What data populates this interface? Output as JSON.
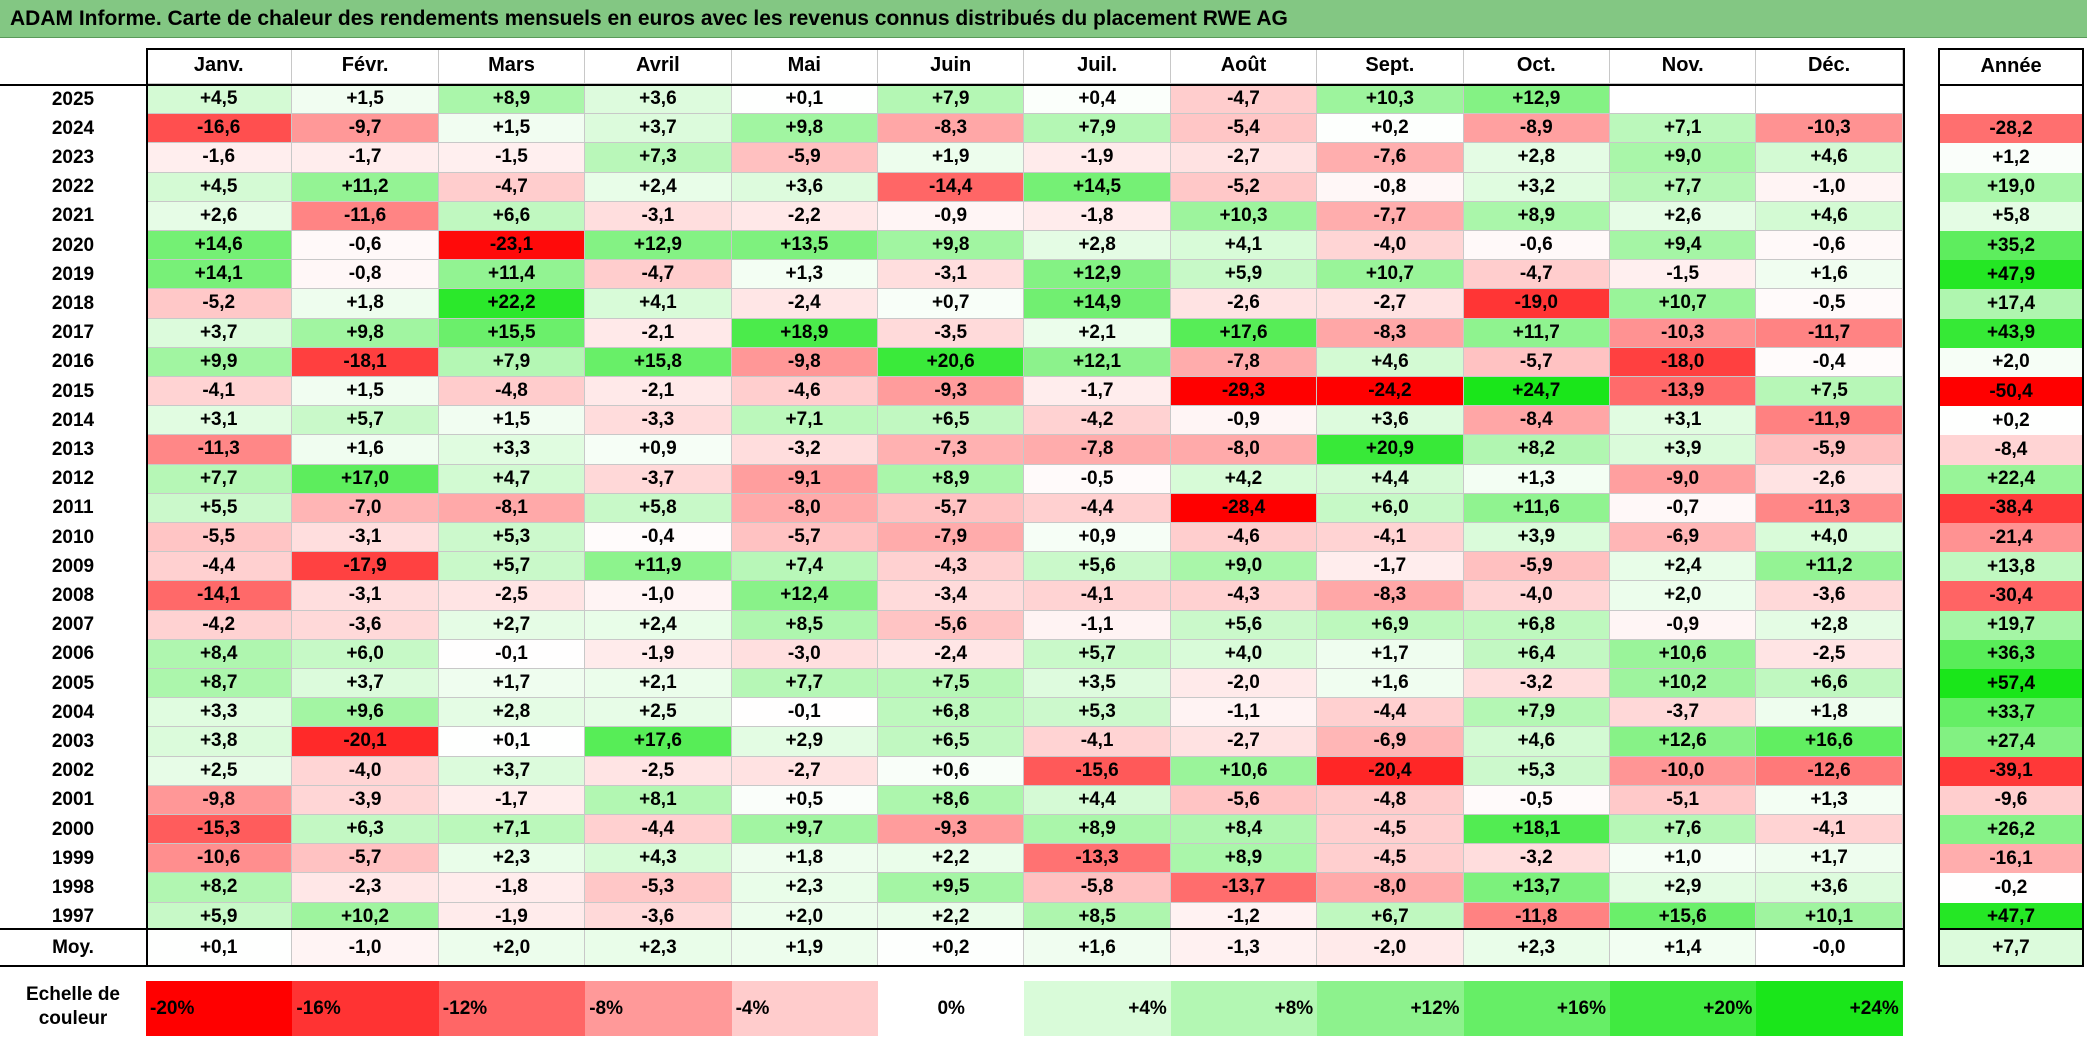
{
  "title": "ADAM Informe. Carte de chaleur des rendements mensuels en euros avec les revenus connus distribués du placement RWE AG",
  "chart_data": {
    "type": "heatmap",
    "title": "ADAM Informe. Carte de chaleur des rendements mensuels en euros avec les revenus connus distribués du placement RWE AG",
    "columns": [
      "Janv.",
      "Févr.",
      "Mars",
      "Avril",
      "Mai",
      "Juin",
      "Juil.",
      "Août",
      "Sept.",
      "Oct.",
      "Nov.",
      "Déc."
    ],
    "annual_header": "Année",
    "rows": [
      {
        "year": "2025",
        "values": [
          "+4,5",
          "+1,5",
          "+8,9",
          "+3,6",
          "+0,1",
          "+7,9",
          "+0,4",
          "-4,7",
          "+10,3",
          "+12,9",
          "",
          ""
        ],
        "annual": ""
      },
      {
        "year": "2024",
        "values": [
          "-16,6",
          "-9,7",
          "+1,5",
          "+3,7",
          "+9,8",
          "-8,3",
          "+7,9",
          "-5,4",
          "+0,2",
          "-8,9",
          "+7,1",
          "-10,3"
        ],
        "annual": "-28,2"
      },
      {
        "year": "2023",
        "values": [
          "-1,6",
          "-1,7",
          "-1,5",
          "+7,3",
          "-5,9",
          "+1,9",
          "-1,9",
          "-2,7",
          "-7,6",
          "+2,8",
          "+9,0",
          "+4,6"
        ],
        "annual": "+1,2"
      },
      {
        "year": "2022",
        "values": [
          "+4,5",
          "+11,2",
          "-4,7",
          "+2,4",
          "+3,6",
          "-14,4",
          "+14,5",
          "-5,2",
          "-0,8",
          "+3,2",
          "+7,7",
          "-1,0"
        ],
        "annual": "+19,0"
      },
      {
        "year": "2021",
        "values": [
          "+2,6",
          "-11,6",
          "+6,6",
          "-3,1",
          "-2,2",
          "-0,9",
          "-1,8",
          "+10,3",
          "-7,7",
          "+8,9",
          "+2,6",
          "+4,6"
        ],
        "annual": "+5,8"
      },
      {
        "year": "2020",
        "values": [
          "+14,6",
          "-0,6",
          "-23,1",
          "+12,9",
          "+13,5",
          "+9,8",
          "+2,8",
          "+4,1",
          "-4,0",
          "-0,6",
          "+9,4",
          "-0,6"
        ],
        "annual": "+35,2"
      },
      {
        "year": "2019",
        "values": [
          "+14,1",
          "-0,8",
          "+11,4",
          "-4,7",
          "+1,3",
          "-3,1",
          "+12,9",
          "+5,9",
          "+10,7",
          "-4,7",
          "-1,5",
          "+1,6"
        ],
        "annual": "+47,9"
      },
      {
        "year": "2018",
        "values": [
          "-5,2",
          "+1,8",
          "+22,2",
          "+4,1",
          "-2,4",
          "+0,7",
          "+14,9",
          "-2,6",
          "-2,7",
          "-19,0",
          "+10,7",
          "-0,5"
        ],
        "annual": "+17,4"
      },
      {
        "year": "2017",
        "values": [
          "+3,7",
          "+9,8",
          "+15,5",
          "-2,1",
          "+18,9",
          "-3,5",
          "+2,1",
          "+17,6",
          "-8,3",
          "+11,7",
          "-10,3",
          "-11,7"
        ],
        "annual": "+43,9"
      },
      {
        "year": "2016",
        "values": [
          "+9,9",
          "-18,1",
          "+7,9",
          "+15,8",
          "-9,8",
          "+20,6",
          "+12,1",
          "-7,8",
          "+4,6",
          "-5,7",
          "-18,0",
          "-0,4"
        ],
        "annual": "+2,0"
      },
      {
        "year": "2015",
        "values": [
          "-4,1",
          "+1,5",
          "-4,8",
          "-2,1",
          "-4,6",
          "-9,3",
          "-1,7",
          "-29,3",
          "-24,2",
          "+24,7",
          "-13,9",
          "+7,5"
        ],
        "annual": "-50,4"
      },
      {
        "year": "2014",
        "values": [
          "+3,1",
          "+5,7",
          "+1,5",
          "-3,3",
          "+7,1",
          "+6,5",
          "-4,2",
          "-0,9",
          "+3,6",
          "-8,4",
          "+3,1",
          "-11,9"
        ],
        "annual": "+0,2"
      },
      {
        "year": "2013",
        "values": [
          "-11,3",
          "+1,6",
          "+3,3",
          "+0,9",
          "-3,2",
          "-7,3",
          "-7,8",
          "-8,0",
          "+20,9",
          "+8,2",
          "+3,9",
          "-5,9"
        ],
        "annual": "-8,4"
      },
      {
        "year": "2012",
        "values": [
          "+7,7",
          "+17,0",
          "+4,7",
          "-3,7",
          "-9,1",
          "+8,9",
          "-0,5",
          "+4,2",
          "+4,4",
          "+1,3",
          "-9,0",
          "-2,6"
        ],
        "annual": "+22,4"
      },
      {
        "year": "2011",
        "values": [
          "+5,5",
          "-7,0",
          "-8,1",
          "+5,8",
          "-8,0",
          "-5,7",
          "-4,4",
          "-28,4",
          "+6,0",
          "+11,6",
          "-0,7",
          "-11,3"
        ],
        "annual": "-38,4"
      },
      {
        "year": "2010",
        "values": [
          "-5,5",
          "-3,1",
          "+5,3",
          "-0,4",
          "-5,7",
          "-7,9",
          "+0,9",
          "-4,6",
          "-4,1",
          "+3,9",
          "-6,9",
          "+4,0"
        ],
        "annual": "-21,4"
      },
      {
        "year": "2009",
        "values": [
          "-4,4",
          "-17,9",
          "+5,7",
          "+11,9",
          "+7,4",
          "-4,3",
          "+5,6",
          "+9,0",
          "-1,7",
          "-5,9",
          "+2,4",
          "+11,2"
        ],
        "annual": "+13,8"
      },
      {
        "year": "2008",
        "values": [
          "-14,1",
          "-3,1",
          "-2,5",
          "-1,0",
          "+12,4",
          "-3,4",
          "-4,1",
          "-4,3",
          "-8,3",
          "-4,0",
          "+2,0",
          "-3,6"
        ],
        "annual": "-30,4"
      },
      {
        "year": "2007",
        "values": [
          "-4,2",
          "-3,6",
          "+2,7",
          "+2,4",
          "+8,5",
          "-5,6",
          "-1,1",
          "+5,6",
          "+6,9",
          "+6,8",
          "-0,9",
          "+2,8"
        ],
        "annual": "+19,7"
      },
      {
        "year": "2006",
        "values": [
          "+8,4",
          "+6,0",
          "-0,1",
          "-1,9",
          "-3,0",
          "-2,4",
          "+5,7",
          "+4,0",
          "+1,7",
          "+6,4",
          "+10,6",
          "-2,5"
        ],
        "annual": "+36,3"
      },
      {
        "year": "2005",
        "values": [
          "+8,7",
          "+3,7",
          "+1,7",
          "+2,1",
          "+7,7",
          "+7,5",
          "+3,5",
          "-2,0",
          "+1,6",
          "-3,2",
          "+10,2",
          "+6,6"
        ],
        "annual": "+57,4"
      },
      {
        "year": "2004",
        "values": [
          "+3,3",
          "+9,6",
          "+2,8",
          "+2,5",
          "-0,1",
          "+6,8",
          "+5,3",
          "-1,1",
          "-4,4",
          "+7,9",
          "-3,7",
          "+1,8"
        ],
        "annual": "+33,7"
      },
      {
        "year": "2003",
        "values": [
          "+3,8",
          "-20,1",
          "+0,1",
          "+17,6",
          "+2,9",
          "+6,5",
          "-4,1",
          "-2,7",
          "-6,9",
          "+4,6",
          "+12,6",
          "+16,6"
        ],
        "annual": "+27,4"
      },
      {
        "year": "2002",
        "values": [
          "+2,5",
          "-4,0",
          "+3,7",
          "-2,5",
          "-2,7",
          "+0,6",
          "-15,6",
          "+10,6",
          "-20,4",
          "+5,3",
          "-10,0",
          "-12,6"
        ],
        "annual": "-39,1"
      },
      {
        "year": "2001",
        "values": [
          "-9,8",
          "-3,9",
          "-1,7",
          "+8,1",
          "+0,5",
          "+8,6",
          "+4,4",
          "-5,6",
          "-4,8",
          "-0,5",
          "-5,1",
          "+1,3"
        ],
        "annual": "-9,6"
      },
      {
        "year": "2000",
        "values": [
          "-15,3",
          "+6,3",
          "+7,1",
          "-4,4",
          "+9,7",
          "-9,3",
          "+8,9",
          "+8,4",
          "-4,5",
          "+18,1",
          "+7,6",
          "-4,1"
        ],
        "annual": "+26,2"
      },
      {
        "year": "1999",
        "values": [
          "-10,6",
          "-5,7",
          "+2,3",
          "+4,3",
          "+1,8",
          "+2,2",
          "-13,3",
          "+8,9",
          "-4,5",
          "-3,2",
          "+1,0",
          "+1,7"
        ],
        "annual": "-16,1"
      },
      {
        "year": "1998",
        "values": [
          "+8,2",
          "-2,3",
          "-1,8",
          "-5,3",
          "+2,3",
          "+9,5",
          "-5,8",
          "-13,7",
          "-8,0",
          "+13,7",
          "+2,9",
          "+3,6"
        ],
        "annual": "-0,2"
      },
      {
        "year": "1997",
        "values": [
          "+5,9",
          "+10,2",
          "-1,9",
          "-3,6",
          "+2,0",
          "+2,2",
          "+8,5",
          "-1,2",
          "+6,7",
          "-11,8",
          "+15,6",
          "+10,1"
        ],
        "annual": "+47,7"
      }
    ],
    "average": {
      "label": "Moy.",
      "values": [
        "+0,1",
        "-1,0",
        "+2,0",
        "+2,3",
        "+1,9",
        "+0,2",
        "+1,6",
        "-1,3",
        "-2,0",
        "+2,3",
        "+1,4",
        "-0,0"
      ],
      "annual": "+7,7"
    },
    "scale": {
      "label_line1": "Echelle de",
      "label_line2": "couleur",
      "items": [
        {
          "label": "-20%",
          "value": -20,
          "color": "#ff0000"
        },
        {
          "label": "-16%",
          "value": -16,
          "color": "#ff3333"
        },
        {
          "label": "-12%",
          "value": -12,
          "color": "#ff6666"
        },
        {
          "label": "-8%",
          "value": -8,
          "color": "#ff9999"
        },
        {
          "label": "-4%",
          "value": -4,
          "color": "#ffcccc"
        },
        {
          "label": "0%",
          "value": 0,
          "color": "#ffffff"
        },
        {
          "label": "+4%",
          "value": 4,
          "color": "#d9fbd9"
        },
        {
          "label": "+8%",
          "value": 8,
          "color": "#b3f7b3"
        },
        {
          "label": "+12%",
          "value": 12,
          "color": "#8df28d"
        },
        {
          "label": "+16%",
          "value": 16,
          "color": "#66ee66"
        },
        {
          "label": "+20%",
          "value": 20,
          "color": "#40ea40"
        },
        {
          "label": "+24%",
          "value": 24,
          "color": "#1ae61a"
        }
      ]
    }
  }
}
